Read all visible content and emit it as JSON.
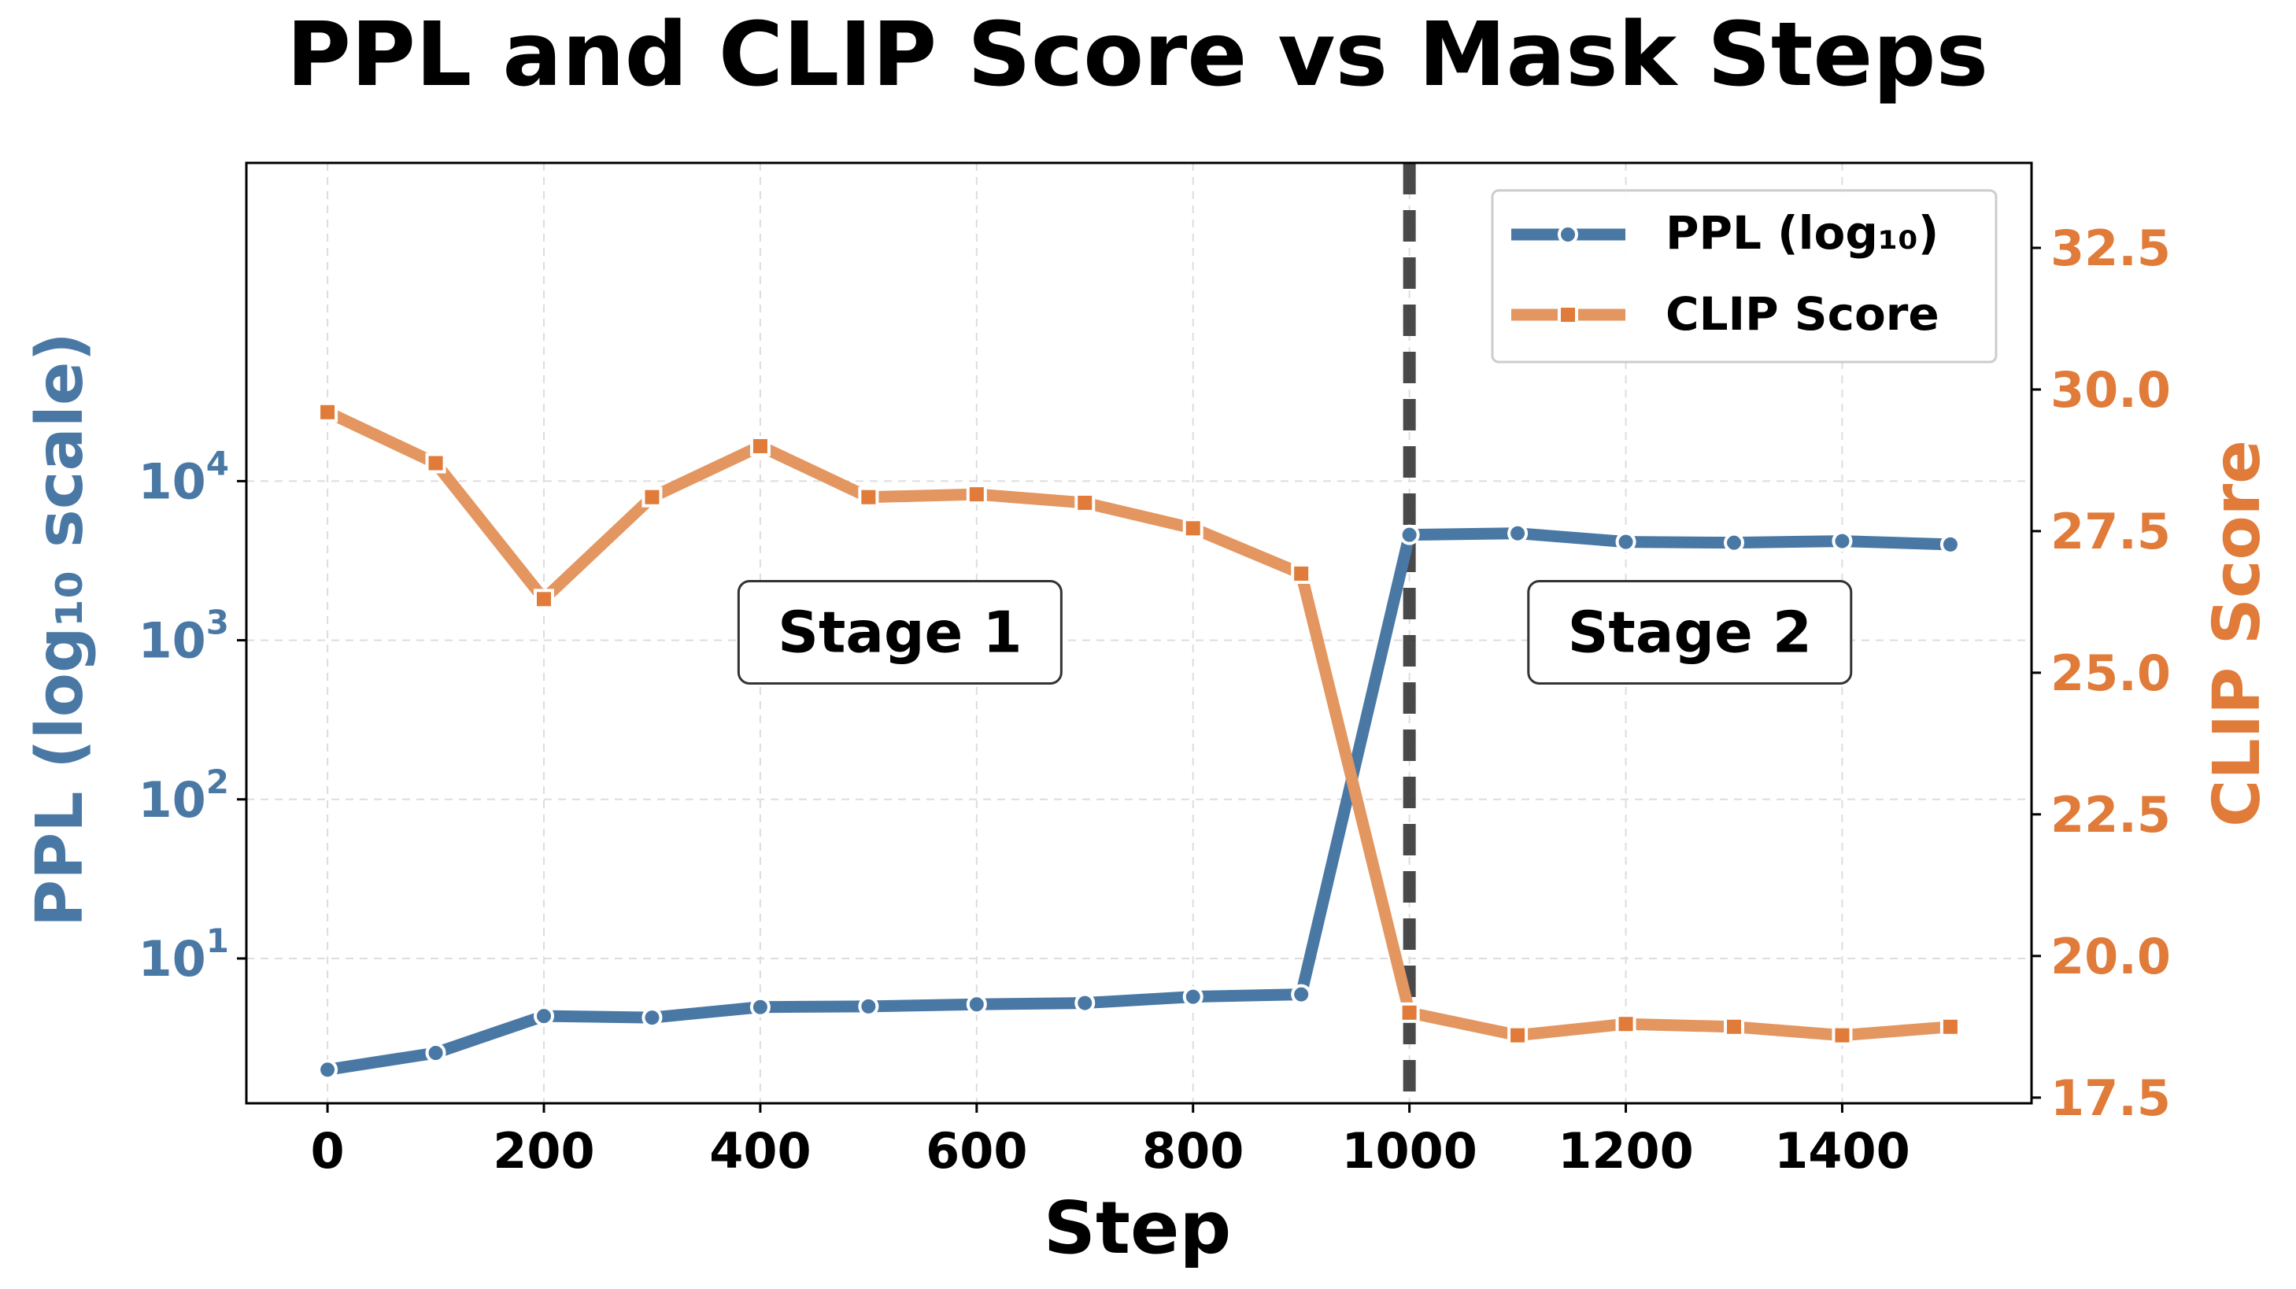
{
  "chart_data": {
    "type": "line",
    "title": "PPL and CLIP Score vs Mask Steps",
    "xlabel": "Step",
    "ylabel_left": "PPL (log₁₀ scale)",
    "ylabel_right": "CLIP Score",
    "xlim": [
      -75,
      1575
    ],
    "ylim_left": [
      1.23,
      1000000
    ],
    "yscale_left": "log",
    "ylim_right": [
      17.4,
      34.0
    ],
    "x_ticks": [
      0,
      200,
      400,
      600,
      800,
      1000,
      1200,
      1400
    ],
    "x_tick_labels": [
      "0",
      "200",
      "400",
      "600",
      "800",
      "1000",
      "1200",
      "1400"
    ],
    "y_left_ticks": [
      10,
      100,
      1000,
      10000
    ],
    "y_left_tick_bases": [
      "10",
      "10",
      "10",
      "10"
    ],
    "y_left_tick_exps": [
      "1",
      "2",
      "3",
      "4"
    ],
    "y_right_ticks": [
      17.5,
      20.0,
      22.5,
      25.0,
      27.5,
      30.0,
      32.5
    ],
    "y_right_tick_labels": [
      "17.5",
      "20.0",
      "22.5",
      "25.0",
      "27.5",
      "30.0",
      "32.5"
    ],
    "grid": true,
    "legend_position": "top-right",
    "x": [
      0,
      100,
      200,
      300,
      400,
      500,
      600,
      700,
      800,
      900,
      1000,
      1100,
      1200,
      1300,
      1400,
      1500
    ],
    "series": [
      {
        "name": "PPL (log₁₀)",
        "axis": "left",
        "marker": "circle",
        "color": "#4a78a5",
        "values": [
          2.0,
          2.55,
          4.35,
          4.25,
          4.95,
          5.0,
          5.15,
          5.25,
          5.75,
          5.95,
          4600,
          4700,
          4150,
          4100,
          4200,
          4000
        ]
      },
      {
        "name": "CLIP Score",
        "axis": "right",
        "marker": "square",
        "color": "#e39660",
        "values": [
          29.6,
          28.7,
          26.3,
          28.1,
          29.0,
          28.1,
          28.15,
          28.0,
          27.55,
          26.75,
          19.0,
          18.6,
          18.8,
          18.75,
          18.6,
          18.75
        ]
      }
    ],
    "annotations": [
      {
        "text": "Stage 1",
        "x": 500,
        "y_frac": 0.5
      },
      {
        "text": "Stage 2",
        "x": 1230,
        "y_frac": 0.5
      }
    ],
    "vline": {
      "x": 1000,
      "style": "dashed",
      "color": "#3a3a3a"
    },
    "left_axis_color": "#4a78a5",
    "right_axis_color": "#e07b39"
  }
}
